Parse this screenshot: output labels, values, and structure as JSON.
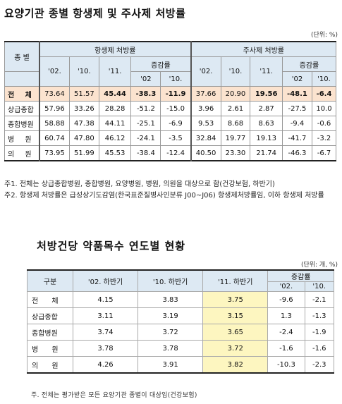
{
  "title1": "요양기관 종별 항생제 및 주사제 처방률",
  "unit1": "(단위: %)",
  "t1": {
    "row_header": "종 별",
    "group1": "항생제 처방률",
    "group2": "주사제 처방률",
    "years": [
      "'02.",
      "'10.",
      "'11."
    ],
    "change": "증감률",
    "change_sub": [
      "'02",
      "'10."
    ],
    "rows": [
      {
        "label": "전 체",
        "vals": [
          "73.64",
          "51.57",
          "45.44",
          "-38.3",
          "-11.9",
          "37.66",
          "20.90",
          "19.56",
          "-48.1",
          "-6.4"
        ]
      },
      {
        "label": "상급종합",
        "vals": [
          "57.96",
          "33.26",
          "28.28",
          "-51.2",
          "-15.0",
          "3.96",
          "2.61",
          "2.87",
          "-27.5",
          "10.0"
        ]
      },
      {
        "label": "종합병원",
        "vals": [
          "58.88",
          "47.38",
          "44.11",
          "-25.1",
          "-6.9",
          "9.53",
          "8.68",
          "8.63",
          "-9.4",
          "-0.6"
        ]
      },
      {
        "label": "병 원",
        "vals": [
          "60.74",
          "47.80",
          "46.12",
          "-24.1",
          "-3.5",
          "32.84",
          "19.77",
          "19.13",
          "-41.7",
          "-3.2"
        ]
      },
      {
        "label": "의 원",
        "vals": [
          "73.95",
          "51.99",
          "45.53",
          "-38.4",
          "-12.4",
          "40.50",
          "23.30",
          "21.74",
          "-46.3",
          "-6.7"
        ]
      }
    ]
  },
  "notes": [
    "주1. 전체는 상급종합병원, 종합병원, 요양병원, 병원, 의원을 대상으로 함(건강보험, 하반기)",
    "주2. 항생제 처방률은 급성상기도감염(한국표준질병사인분류 J00~J06) 항생제처방률임, 이하 항생제 처방률"
  ],
  "title2": "처방건당 약품목수 연도별 현황",
  "unit2": "(단위: 개, %)",
  "t2": {
    "headers": [
      "구분",
      "'02. 하반기",
      "'10. 하반기",
      "'11. 하반기"
    ],
    "change": "증감률",
    "change_sub": [
      "'02.",
      "'10."
    ],
    "rows": [
      {
        "label": "전 체",
        "vals": [
          "4.15",
          "3.83",
          "3.75",
          "-9.6",
          "-2.1"
        ]
      },
      {
        "label": "상급종합",
        "vals": [
          "3.11",
          "3.19",
          "3.15",
          "1.3",
          "-1.3"
        ]
      },
      {
        "label": "종합병원",
        "vals": [
          "3.74",
          "3.72",
          "3.65",
          "-2.4",
          "-1.9"
        ]
      },
      {
        "label": "병 원",
        "vals": [
          "3.78",
          "3.78",
          "3.72",
          "-1.6",
          "-1.6"
        ]
      },
      {
        "label": "의 원",
        "vals": [
          "4.26",
          "3.91",
          "3.82",
          "-10.3",
          "-2.3"
        ]
      }
    ]
  },
  "note2": "주. 전체는 평가받은 모든 요양기관 종별이 대상임(건강보험)"
}
